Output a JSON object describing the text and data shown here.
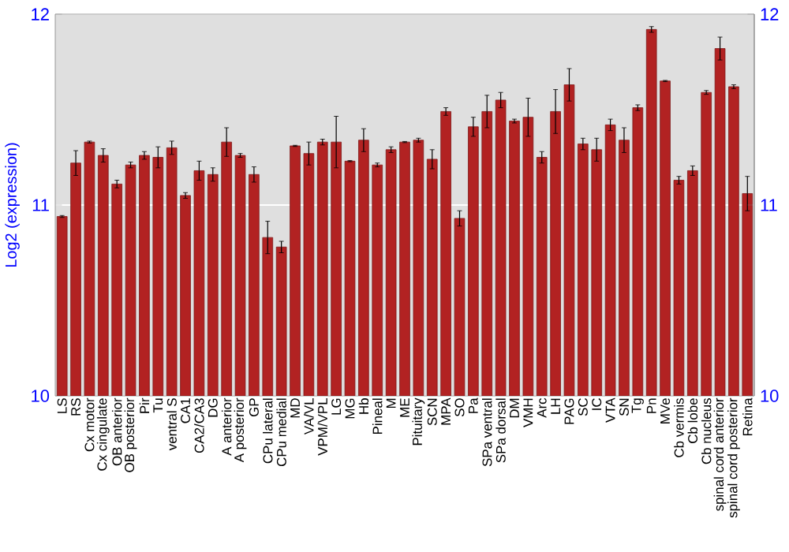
{
  "chart_data": {
    "type": "bar",
    "ylabel": "Log2 (expression)",
    "categories": [
      "LS",
      "RS",
      "Cx motor",
      "Cx cingulate",
      "OB anterior",
      "OB posterior",
      "Pir",
      "Tu",
      "ventral S",
      "CA1",
      "CA2/CA3",
      "DG",
      "A anterior",
      "A posterior",
      "GP",
      "CPu lateral",
      "CPu medial",
      "MD",
      "VA/VL",
      "VPM/VPL",
      "LG",
      "MG",
      "Hb",
      "Pineal",
      "M",
      "ME",
      "Pituitary",
      "SCN",
      "MPA",
      "SO",
      "Pa",
      "SPa ventral",
      "SPa dorsal",
      "DM",
      "VMH",
      "Arc",
      "LH",
      "PAG",
      "SC",
      "IC",
      "VTA",
      "SN",
      "Tg",
      "Pn",
      "MVe",
      "Cb vermis",
      "Cb lobe",
      "Cb nucleus",
      "spinal cord anterior",
      "spinal cord posterior",
      "Retina"
    ],
    "values": [
      10.94,
      11.22,
      11.33,
      11.26,
      11.11,
      11.21,
      11.26,
      11.25,
      11.3,
      11.05,
      11.18,
      11.16,
      11.33,
      11.26,
      11.16,
      10.83,
      10.78,
      11.31,
      11.27,
      11.33,
      11.33,
      11.23,
      11.34,
      11.21,
      11.29,
      11.33,
      11.34,
      11.24,
      11.49,
      10.93,
      11.41,
      11.49,
      11.55,
      11.44,
      11.46,
      11.25,
      11.49,
      11.63,
      11.32,
      11.29,
      11.42,
      11.34,
      11.51,
      11.92,
      11.65,
      11.13,
      11.18,
      11.59,
      11.82,
      11.62,
      11.06
    ],
    "errors": [
      0.005,
      0.065,
      0.005,
      0.035,
      0.02,
      0.015,
      0.02,
      0.055,
      0.035,
      0.015,
      0.05,
      0.035,
      0.075,
      0.01,
      0.04,
      0.085,
      0.03,
      0.003,
      0.06,
      0.015,
      0.135,
      0.003,
      0.06,
      0.01,
      0.015,
      0.003,
      0.01,
      0.05,
      0.02,
      0.04,
      0.05,
      0.085,
      0.04,
      0.01,
      0.1,
      0.03,
      0.115,
      0.085,
      0.03,
      0.06,
      0.03,
      0.065,
      0.015,
      0.015,
      0.003,
      0.02,
      0.025,
      0.01,
      0.06,
      0.01,
      0.09
    ],
    "color": "#b22222",
    "ylim": [
      10,
      12
    ],
    "yticks": [
      10,
      11,
      12
    ],
    "y2lim": [
      10,
      12
    ],
    "y2ticks": [
      10,
      11,
      12
    ],
    "grid": "y"
  }
}
